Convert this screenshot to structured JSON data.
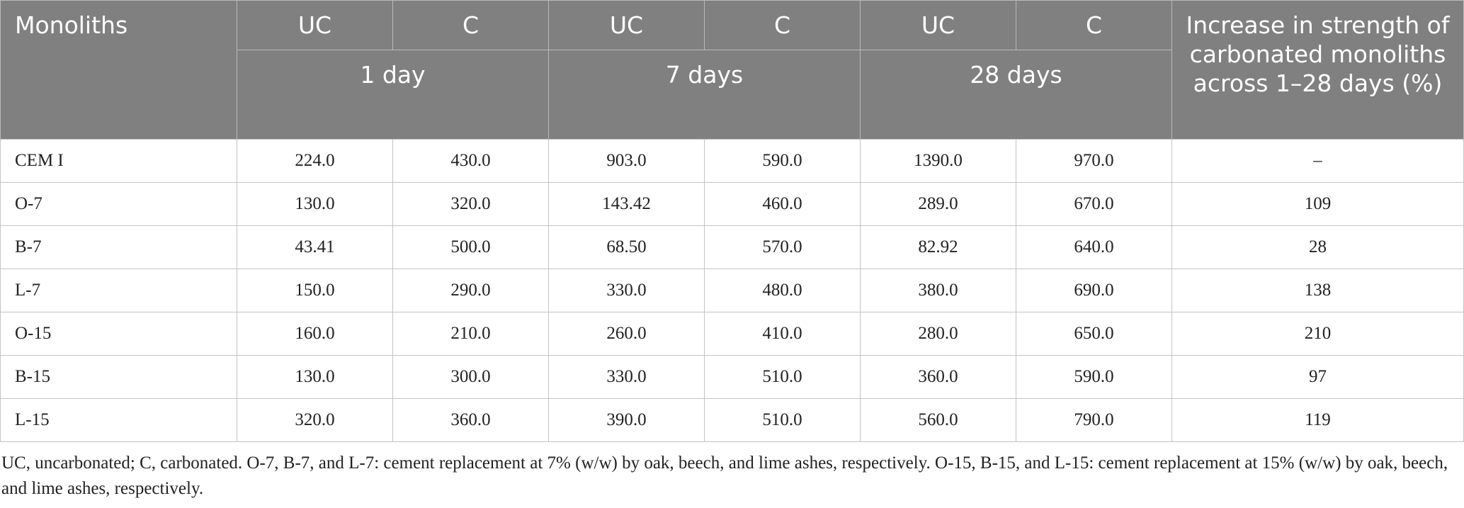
{
  "table": {
    "header": {
      "first": "Monoliths",
      "row1": [
        "UC",
        "C",
        "UC",
        "C",
        "UC",
        "C"
      ],
      "days": [
        "1 day",
        "7 days",
        "28 days"
      ],
      "increase": "Increase in strength of carbonated monoliths across 1–28 days (%)"
    },
    "rows": [
      {
        "name": "CEM I",
        "d1_uc": "224.0",
        "d1_c": "430.0",
        "d7_uc": "903.0",
        "d7_c": "590.0",
        "d28_uc": "1390.0",
        "d28_c": "970.0",
        "inc": "–"
      },
      {
        "name": "O-7",
        "d1_uc": "130.0",
        "d1_c": "320.0",
        "d7_uc": "143.42",
        "d7_c": "460.0",
        "d28_uc": "289.0",
        "d28_c": "670.0",
        "inc": "109"
      },
      {
        "name": "B-7",
        "d1_uc": "43.41",
        "d1_c": "500.0",
        "d7_uc": "68.50",
        "d7_c": "570.0",
        "d28_uc": "82.92",
        "d28_c": "640.0",
        "inc": "28"
      },
      {
        "name": "L-7",
        "d1_uc": "150.0",
        "d1_c": "290.0",
        "d7_uc": "330.0",
        "d7_c": "480.0",
        "d28_uc": "380.0",
        "d28_c": "690.0",
        "inc": "138"
      },
      {
        "name": "O-15",
        "d1_uc": "160.0",
        "d1_c": "210.0",
        "d7_uc": "260.0",
        "d7_c": "410.0",
        "d28_uc": "280.0",
        "d28_c": "650.0",
        "inc": "210"
      },
      {
        "name": "B-15",
        "d1_uc": "130.0",
        "d1_c": "300.0",
        "d7_uc": "330.0",
        "d7_c": "510.0",
        "d28_uc": "360.0",
        "d28_c": "590.0",
        "inc": "97"
      },
      {
        "name": "L-15",
        "d1_uc": "320.0",
        "d1_c": "360.0",
        "d7_uc": "390.0",
        "d7_c": "510.0",
        "d28_uc": "560.0",
        "d28_c": "790.0",
        "inc": "119"
      }
    ]
  },
  "footnote": "UC, uncarbonated; C, carbonated. O-7, B-7, and L-7: cement replacement at 7% (w/w) by oak, beech, and lime ashes, respectively. O-15, B-15, and L-15: cement replacement at 15% (w/w) by oak, beech, and lime ashes, respectively."
}
